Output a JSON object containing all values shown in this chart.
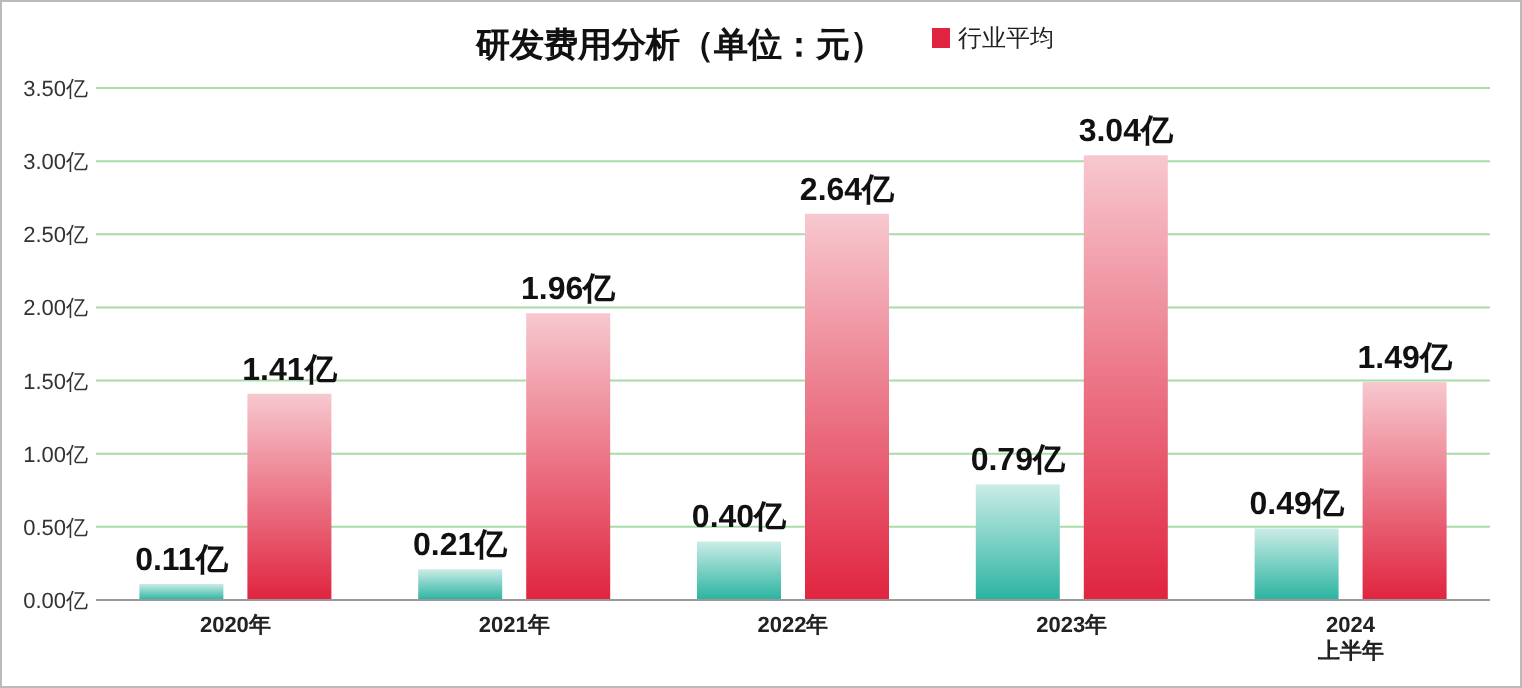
{
  "chart_data": {
    "type": "bar",
    "title": "研发费用分析（单位：元）",
    "categories": [
      "2020年",
      "2021年",
      "2022年",
      "2023年",
      "2024\n上半年"
    ],
    "series": [
      {
        "color": "#2ab3a0",
        "values": [
          0.11,
          0.21,
          0.4,
          0.79,
          0.49
        ],
        "value_labels": [
          "0.11亿",
          "0.21亿",
          "0.40亿",
          "0.79亿",
          "0.49亿"
        ]
      },
      {
        "name": "行业平均",
        "color": "#e0243f",
        "values": [
          1.41,
          1.96,
          2.64,
          3.04,
          1.49
        ],
        "value_labels": [
          "1.41亿",
          "1.96亿",
          "2.64亿",
          "3.04亿",
          "1.49亿"
        ]
      }
    ],
    "ylim": [
      0,
      3.5
    ],
    "yticks": [
      {
        "value": 0,
        "label": "0.00亿"
      },
      {
        "value": 0.5,
        "label": "0.50亿"
      },
      {
        "value": 1,
        "label": "1.00亿"
      },
      {
        "value": 1.5,
        "label": "1.50亿"
      },
      {
        "value": 2,
        "label": "2.00亿"
      },
      {
        "value": 2.5,
        "label": "2.50亿"
      },
      {
        "value": 3,
        "label": "3.00亿"
      },
      {
        "value": 3.5,
        "label": "3.50亿"
      }
    ],
    "grid": "y",
    "legend": "top right"
  }
}
